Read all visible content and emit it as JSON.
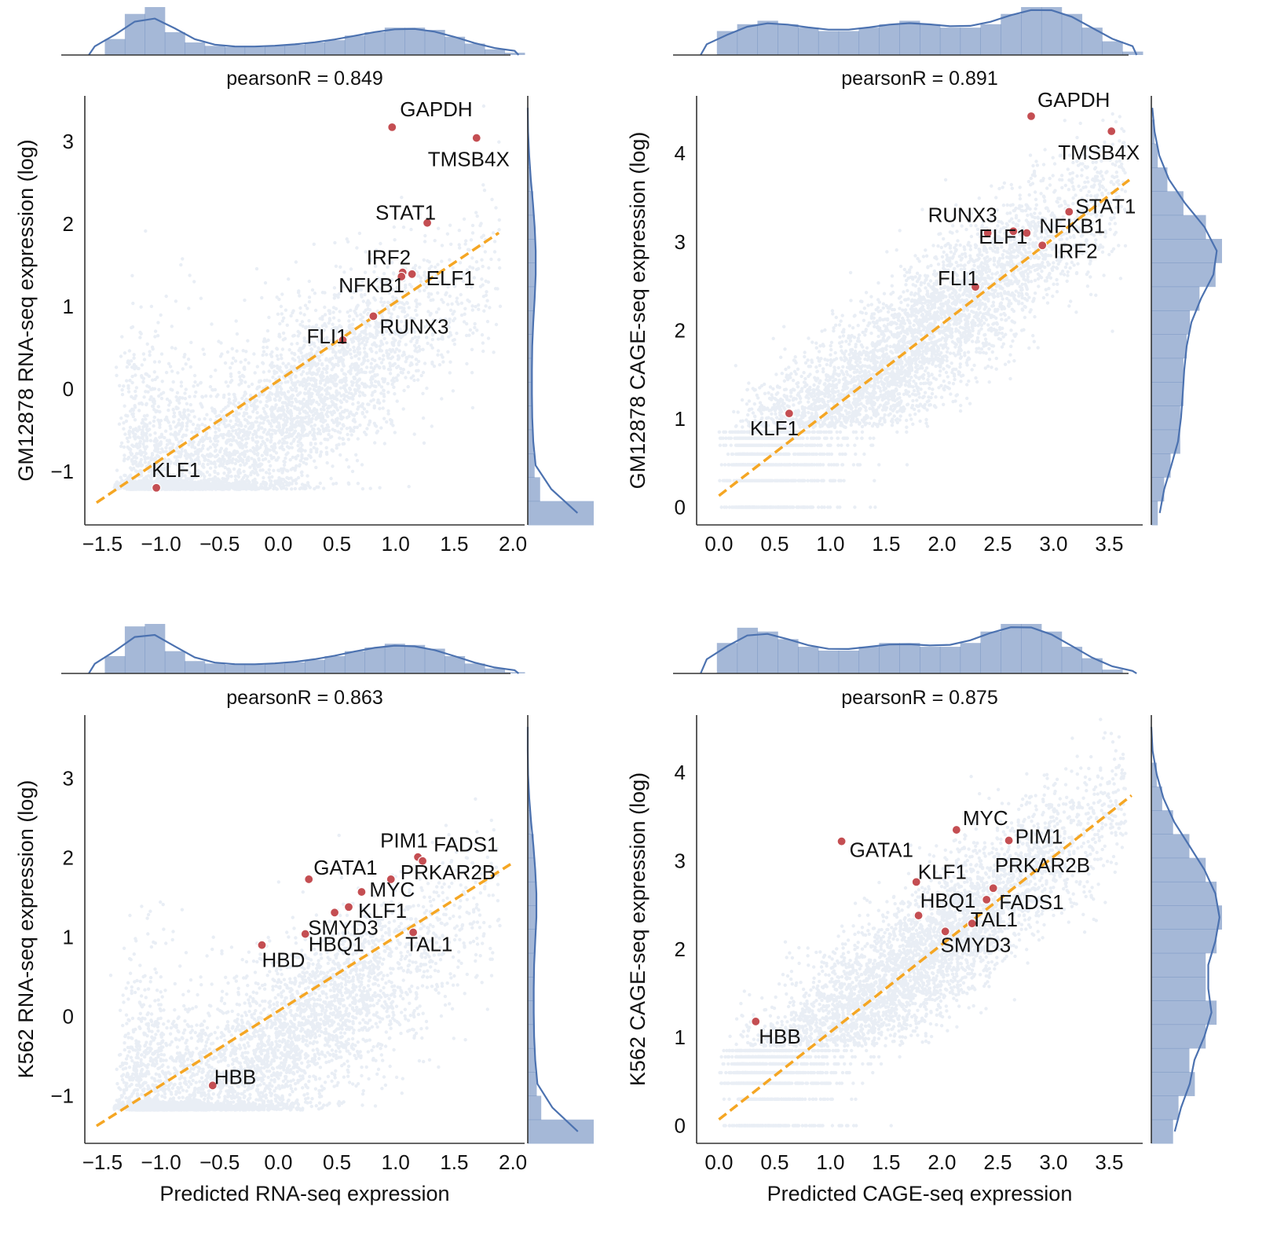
{
  "colors": {
    "points": "#4c72b0",
    "highlight": "#c44e52",
    "fit_line": "#f5a623",
    "histogram": "#4c72b0",
    "axis": "#333333"
  },
  "chart_data": [
    {
      "type": "scatter",
      "title": "pearsonR = 0.849",
      "xlabel": "",
      "ylabel": "GM12878 RNA-seq expression (log)",
      "xlim": [
        -1.65,
        2.1
      ],
      "ylim": [
        -1.65,
        3.55
      ],
      "xticks": [
        -1.5,
        -1.0,
        -0.5,
        0.0,
        0.5,
        1.0,
        1.5,
        2.0
      ],
      "xtick_labels": [
        "−1.5",
        "−1.0",
        "−0.5",
        "0.0",
        "0.5",
        "1.0",
        "1.5",
        "2.0"
      ],
      "yticks": [
        -1,
        0,
        1,
        2,
        3
      ],
      "ytick_labels": [
        "−1",
        "0",
        "1",
        "2",
        "3"
      ],
      "fit_line": [
        [
          -1.55,
          -1.38
        ],
        [
          1.88,
          1.89
        ]
      ],
      "point_cloud": {
        "kind": "rna",
        "floor": -1.22,
        "n_points": 5000
      },
      "top_hist_counts": [
        0,
        14,
        36,
        42,
        20,
        11,
        8,
        7,
        7,
        8,
        9,
        11,
        13,
        17,
        20,
        24,
        24,
        22,
        16,
        10,
        5,
        2
      ],
      "right_hist_counts": [
        48,
        9,
        5,
        4,
        3,
        3,
        3,
        3,
        4,
        5,
        6,
        6,
        5,
        4,
        2,
        1,
        0,
        0
      ],
      "highlighted_points": [
        {
          "label": "GAPDH",
          "x": 0.97,
          "y": 3.17
        },
        {
          "label": "TMSB4X",
          "x": 1.69,
          "y": 3.04
        },
        {
          "label": "STAT1",
          "x": 1.27,
          "y": 2.01
        },
        {
          "label": "IRF2",
          "x": 1.06,
          "y": 1.41
        },
        {
          "label": "NFKB1",
          "x": 1.05,
          "y": 1.36
        },
        {
          "label": "ELF1",
          "x": 1.14,
          "y": 1.39
        },
        {
          "label": "RUNX3",
          "x": 0.81,
          "y": 0.88
        },
        {
          "label": "FLI1",
          "x": 0.55,
          "y": 0.59
        },
        {
          "label": "KLF1",
          "x": -1.04,
          "y": -1.2
        }
      ]
    },
    {
      "type": "scatter",
      "title": "pearsonR = 0.891",
      "xlabel": "",
      "ylabel": "GM12878 CAGE-seq expression (log)",
      "xlim": [
        -0.2,
        3.8
      ],
      "ylim": [
        -0.2,
        4.65
      ],
      "xticks": [
        0.0,
        0.5,
        1.0,
        1.5,
        2.0,
        2.5,
        3.0,
        3.5
      ],
      "xtick_labels": [
        "0.0",
        "0.5",
        "1.0",
        "1.5",
        "2.0",
        "2.5",
        "3.0",
        "3.5"
      ],
      "yticks": [
        0,
        1,
        2,
        3,
        4
      ],
      "ytick_labels": [
        "0",
        "1",
        "2",
        "3",
        "4"
      ],
      "fit_line": [
        [
          0.0,
          0.13
        ],
        [
          3.68,
          3.7
        ]
      ],
      "point_cloud": {
        "kind": "cage",
        "floor": 0.0,
        "n_points": 5000
      },
      "top_hist_counts": [
        0,
        7,
        9,
        10,
        9,
        8,
        7,
        7,
        8,
        9,
        10,
        9,
        8,
        8,
        9,
        12,
        14,
        14,
        12,
        8,
        4,
        1
      ],
      "right_hist_counts": [
        2,
        4,
        6,
        9,
        9,
        10,
        10,
        11,
        12,
        15,
        20,
        22,
        17,
        10,
        5,
        2,
        1,
        0
      ],
      "highlighted_points": [
        {
          "label": "GAPDH",
          "x": 2.8,
          "y": 4.42
        },
        {
          "label": "TMSB4X",
          "x": 3.52,
          "y": 4.25
        },
        {
          "label": "STAT1",
          "x": 3.14,
          "y": 3.34
        },
        {
          "label": "RUNX3",
          "x": 2.41,
          "y": 3.1
        },
        {
          "label": "NFKB1",
          "x": 2.76,
          "y": 3.1
        },
        {
          "label": "ELF1",
          "x": 2.64,
          "y": 3.12
        },
        {
          "label": "IRF2",
          "x": 2.9,
          "y": 2.96
        },
        {
          "label": "FLI1",
          "x": 2.3,
          "y": 2.49
        },
        {
          "label": "KLF1",
          "x": 0.63,
          "y": 1.06
        }
      ]
    },
    {
      "type": "scatter",
      "title": "pearsonR = 0.863",
      "xlabel": "Predicted RNA-seq expression",
      "ylabel": "K562 RNA-seq expression (log)",
      "xlim": [
        -1.65,
        2.1
      ],
      "ylim": [
        -1.6,
        3.8
      ],
      "xticks": [
        -1.5,
        -1.0,
        -0.5,
        0.0,
        0.5,
        1.0,
        1.5,
        2.0
      ],
      "xtick_labels": [
        "−1.5",
        "−1.0",
        "−0.5",
        "0.0",
        "0.5",
        "1.0",
        "1.5",
        "2.0"
      ],
      "yticks": [
        -1,
        0,
        1,
        2,
        3
      ],
      "ytick_labels": [
        "−1",
        "0",
        "1",
        "2",
        "3"
      ],
      "fit_line": [
        [
          -1.55,
          -1.38
        ],
        [
          1.98,
          1.92
        ]
      ],
      "point_cloud": {
        "kind": "rna",
        "floor": -1.18,
        "n_points": 5000
      },
      "top_hist_counts": [
        0,
        14,
        38,
        40,
        18,
        10,
        8,
        7,
        7,
        8,
        9,
        11,
        14,
        18,
        21,
        24,
        23,
        20,
        14,
        8,
        4,
        1
      ],
      "right_hist_counts": [
        44,
        9,
        6,
        5,
        4,
        4,
        4,
        4,
        5,
        6,
        6,
        5,
        4,
        2,
        1,
        0,
        0,
        0
      ],
      "highlighted_points": [
        {
          "label": "PIM1",
          "x": 1.19,
          "y": 2.01
        },
        {
          "label": "FADS1",
          "x": 1.23,
          "y": 1.96
        },
        {
          "label": "PRKAR2B",
          "x": 0.96,
          "y": 1.73
        },
        {
          "label": "GATA1",
          "x": 0.26,
          "y": 1.73
        },
        {
          "label": "MYC",
          "x": 0.71,
          "y": 1.57
        },
        {
          "label": "KLF1",
          "x": 0.6,
          "y": 1.38
        },
        {
          "label": "SMYD3",
          "x": 0.48,
          "y": 1.31
        },
        {
          "label": "TAL1",
          "x": 1.15,
          "y": 1.06
        },
        {
          "label": "HBQ1",
          "x": 0.23,
          "y": 1.04
        },
        {
          "label": "HBD",
          "x": -0.14,
          "y": 0.9
        },
        {
          "label": "HBB",
          "x": -0.56,
          "y": -0.87
        }
      ]
    },
    {
      "type": "scatter",
      "title": "pearsonR = 0.875",
      "xlabel": "Predicted CAGE-seq expression",
      "ylabel": "K562 CAGE-seq expression (log)",
      "xlim": [
        -0.2,
        3.8
      ],
      "ylim": [
        -0.2,
        4.65
      ],
      "xticks": [
        0.0,
        0.5,
        1.0,
        1.5,
        2.0,
        2.5,
        3.0,
        3.5
      ],
      "xtick_labels": [
        "0.0",
        "0.5",
        "1.0",
        "1.5",
        "2.0",
        "2.5",
        "3.0",
        "3.5"
      ],
      "yticks": [
        0,
        1,
        2,
        3,
        4
      ],
      "ytick_labels": [
        "0",
        "1",
        "2",
        "3",
        "4"
      ],
      "fit_line": [
        [
          0.0,
          0.07
        ],
        [
          3.7,
          3.74
        ]
      ],
      "point_cloud": {
        "kind": "cage",
        "floor": 0.0,
        "n_points": 5000
      },
      "top_hist_counts": [
        0,
        8,
        12,
        11,
        9,
        7,
        6,
        6,
        7,
        8,
        8,
        7,
        7,
        8,
        11,
        13,
        13,
        11,
        7,
        4,
        1,
        0
      ],
      "right_hist_counts": [
        4,
        5,
        8,
        7,
        10,
        12,
        10,
        10,
        12,
        13,
        12,
        10,
        7,
        4,
        2,
        1,
        0,
        0
      ],
      "highlighted_points": [
        {
          "label": "MYC",
          "x": 2.13,
          "y": 3.35
        },
        {
          "label": "GATA1",
          "x": 1.1,
          "y": 3.22
        },
        {
          "label": "PIM1",
          "x": 2.6,
          "y": 3.23
        },
        {
          "label": "KLF1",
          "x": 1.77,
          "y": 2.76
        },
        {
          "label": "PRKAR2B",
          "x": 2.46,
          "y": 2.69
        },
        {
          "label": "HBQ1",
          "x": 1.79,
          "y": 2.38
        },
        {
          "label": "FADS1",
          "x": 2.4,
          "y": 2.56
        },
        {
          "label": "TAL1",
          "x": 2.27,
          "y": 2.29
        },
        {
          "label": "SMYD3",
          "x": 2.03,
          "y": 2.2
        },
        {
          "label": "HBB",
          "x": 0.33,
          "y": 1.18
        }
      ]
    }
  ]
}
